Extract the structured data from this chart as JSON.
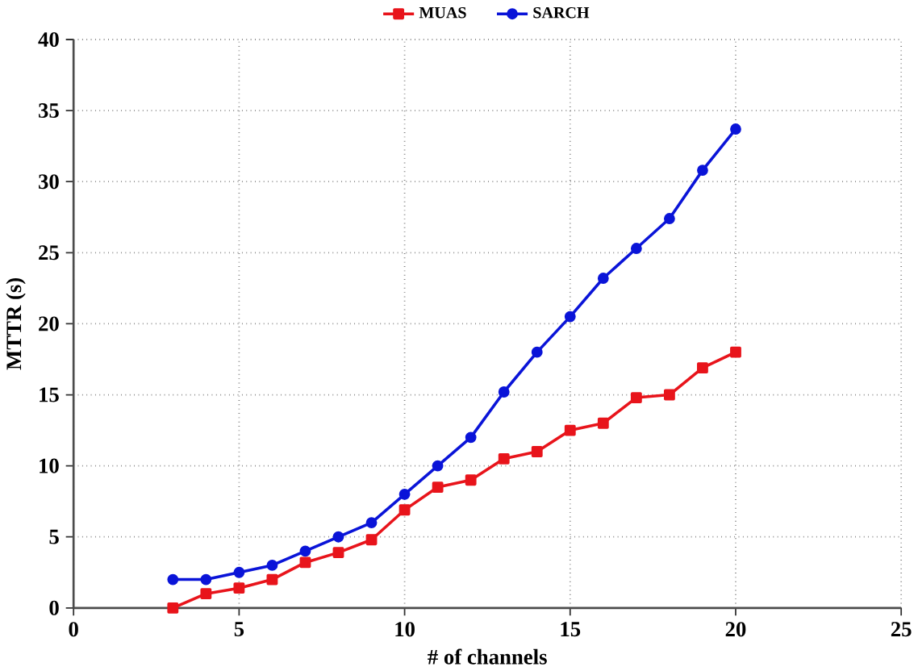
{
  "chart_data": {
    "type": "line",
    "xlabel": "# of channels",
    "ylabel": "MTTR (s)",
    "x": [
      3,
      4,
      5,
      6,
      7,
      8,
      9,
      10,
      11,
      12,
      13,
      14,
      15,
      16,
      17,
      18,
      19,
      20
    ],
    "series": [
      {
        "name": "MUAS",
        "color": "#e8141b",
        "marker": "square",
        "values": [
          0,
          1,
          1.4,
          2,
          3.2,
          3.9,
          4.8,
          6.9,
          8.5,
          9,
          10.5,
          11,
          12.5,
          13,
          14.8,
          15,
          16.9,
          18
        ]
      },
      {
        "name": "SARCH",
        "color": "#0a14d8",
        "marker": "circle",
        "values": [
          2,
          2,
          2.5,
          3,
          4,
          5,
          6,
          8,
          10,
          12,
          15.2,
          18,
          20.5,
          23.2,
          25.3,
          27.4,
          30.8,
          33.7
        ]
      }
    ],
    "xlim": [
      0,
      25
    ],
    "xticks": [
      0,
      5,
      10,
      15,
      20,
      25
    ],
    "ylim": [
      0,
      40
    ],
    "yticks": [
      0,
      5,
      10,
      15,
      20,
      25,
      30,
      35,
      40
    ],
    "grid": true,
    "legend": "top",
    "line_style": "solid"
  }
}
